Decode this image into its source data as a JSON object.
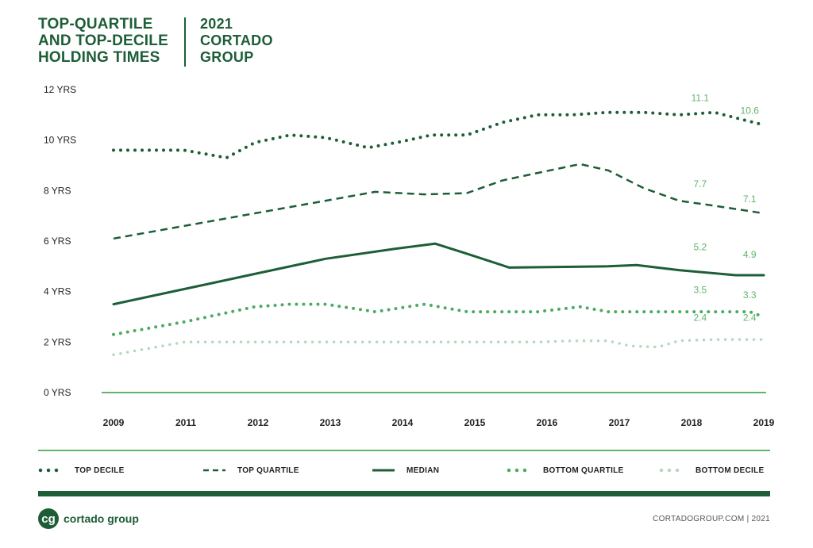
{
  "header": {
    "title": "TOP-QUARTILE AND TOP-DECILE HOLDING TIMES",
    "subtitle": "2021 CORTADO GROUP"
  },
  "chart_data": {
    "type": "line",
    "title": "TOP-QUARTILE AND TOP-DECILE HOLDING TIMES",
    "xlabel": "",
    "ylabel": "",
    "categories": [
      "2009",
      "2011",
      "2012",
      "2013",
      "2014",
      "2015",
      "2016",
      "2017",
      "2018",
      "2019"
    ],
    "y_ticks": [
      "0 YRS",
      "2 YRS",
      "4 YRS",
      "6 YRS",
      "8 YRS",
      "10 YRS",
      "12 YRS"
    ],
    "ylim": [
      0,
      12
    ],
    "x_range": [
      0,
      9.2
    ],
    "grid": false,
    "legend_position": "bottom",
    "series": [
      {
        "name": "TOP DECILE",
        "style": "dotted-large",
        "color": "#1d5e37",
        "x": [
          0,
          1,
          1.6,
          2,
          2.5,
          3,
          3.6,
          4,
          4.5,
          5,
          5.5,
          6,
          6.5,
          7,
          7.5,
          8,
          8.5,
          9.2
        ],
        "values": [
          9.6,
          9.6,
          9.3,
          9.9,
          10.2,
          10.1,
          9.7,
          9.9,
          10.2,
          10.2,
          10.7,
          11.0,
          11.0,
          11.1,
          11.1,
          11.0,
          11.1,
          10.6
        ],
        "labels": [
          {
            "x": 8.3,
            "y": 11.1,
            "text": "11.1"
          },
          {
            "x": 9.0,
            "y": 10.6,
            "text": "10.6"
          }
        ]
      },
      {
        "name": "TOP QUARTILE",
        "style": "dashed",
        "color": "#1d5e37",
        "x": [
          0,
          1,
          2,
          3,
          3.7,
          4.4,
          5,
          5.5,
          6,
          6.6,
          7,
          7.5,
          8,
          8.5,
          9.2
        ],
        "values": [
          6.1,
          6.6,
          7.1,
          7.6,
          7.95,
          7.85,
          7.9,
          8.4,
          8.7,
          9.05,
          8.8,
          8.1,
          7.6,
          7.4,
          7.1
        ],
        "labels": [
          {
            "x": 8.3,
            "y": 7.7,
            "text": "7.7"
          },
          {
            "x": 9.0,
            "y": 7.1,
            "text": "7.1"
          }
        ]
      },
      {
        "name": "MEDIAN",
        "style": "solid",
        "color": "#1d5e37",
        "x": [
          0,
          1,
          2,
          3,
          4,
          4.55,
          5,
          5.6,
          7,
          7.4,
          8,
          8.8,
          9.2
        ],
        "values": [
          3.5,
          4.1,
          4.7,
          5.3,
          5.7,
          5.9,
          5.5,
          4.95,
          5.0,
          5.05,
          4.85,
          4.65,
          4.65
        ],
        "labels": [
          {
            "x": 8.3,
            "y": 5.2,
            "text": "5.2"
          },
          {
            "x": 9.0,
            "y": 4.9,
            "text": "4.9"
          }
        ]
      },
      {
        "name": "BOTTOM QUARTILE",
        "style": "dotted-large",
        "color": "#4caa63",
        "x": [
          0,
          1,
          2,
          2.5,
          3,
          3.7,
          4.4,
          5,
          5.5,
          6,
          6.6,
          7,
          7.5,
          8,
          8.5,
          9,
          9.2
        ],
        "values": [
          2.3,
          2.8,
          3.4,
          3.5,
          3.5,
          3.2,
          3.5,
          3.2,
          3.2,
          3.2,
          3.4,
          3.2,
          3.2,
          3.2,
          3.2,
          3.2,
          3.0
        ],
        "labels": [
          {
            "x": 8.3,
            "y": 3.5,
            "text": "3.5"
          },
          {
            "x": 9.0,
            "y": 3.3,
            "text": "3.3"
          }
        ]
      },
      {
        "name": "BOTTOM DECILE",
        "style": "dotted-small",
        "color": "#b3d9bc",
        "x": [
          0,
          1,
          2,
          3,
          4,
          5,
          6,
          6.5,
          7,
          7.3,
          7.7,
          8,
          8.5,
          9.2
        ],
        "values": [
          1.5,
          2.0,
          2.0,
          2.0,
          2.0,
          2.0,
          2.0,
          2.05,
          2.05,
          1.85,
          1.8,
          2.05,
          2.1,
          2.1
        ],
        "labels": [
          {
            "x": 8.3,
            "y": 2.4,
            "text": "2.4"
          },
          {
            "x": 9.0,
            "y": 2.4,
            "text": "2.4"
          }
        ]
      }
    ]
  },
  "legend": {
    "items": [
      {
        "label": "TOP DECILE",
        "color": "#1d5e37",
        "style": "dotted-large"
      },
      {
        "label": "TOP QUARTILE",
        "color": "#1d5e37",
        "style": "dashed"
      },
      {
        "label": "MEDIAN",
        "color": "#1d5e37",
        "style": "solid"
      },
      {
        "label": "BOTTOM QUARTILE",
        "color": "#4caa63",
        "style": "dotted-large"
      },
      {
        "label": "BOTTOM DECILE",
        "color": "#b3d9bc",
        "style": "dotted-small"
      }
    ]
  },
  "footer": {
    "logo_mark": "cg",
    "logo_text": "cortado group",
    "right_text": "CORTADOGROUP.COM  |  2021"
  },
  "colors": {
    "dark_green": "#1d5e37",
    "mid_green": "#4caa63",
    "light_green": "#b3d9bc",
    "label_green": "#5fb56b"
  }
}
